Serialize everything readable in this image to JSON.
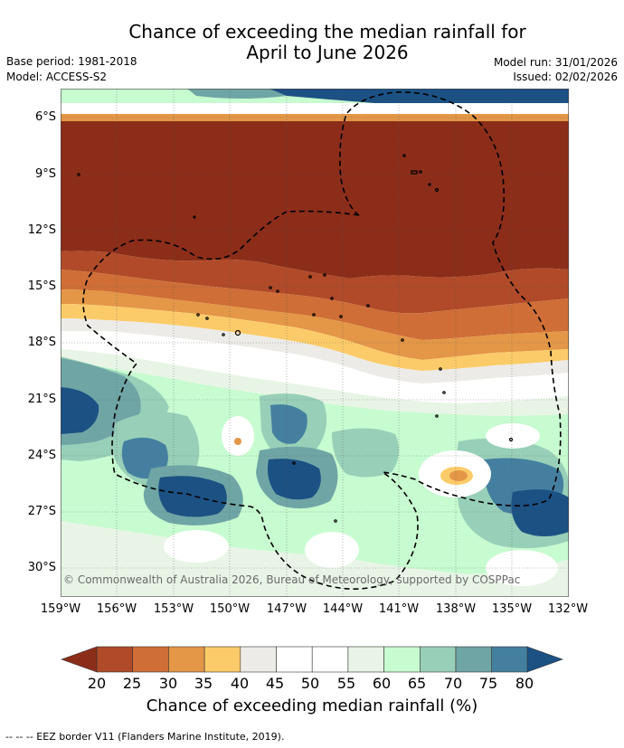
{
  "header": {
    "title_line1": "Chance of exceeding the median rainfall for",
    "title_line2": "April to June 2026",
    "base_period": "Base period: 1981-2018",
    "model": "Model: ACCESS-S2",
    "model_run": "Model run: 31/01/2026",
    "issued": "Issued: 02/02/2026"
  },
  "map": {
    "credit": "© Commonwealth of Australia 2026, Bureau of Meteorology, supported by COSPPac",
    "lat_ticks": [
      "6°S",
      "9°S",
      "12°S",
      "15°S",
      "18°S",
      "21°S",
      "24°S",
      "27°S",
      "30°S"
    ],
    "lon_ticks": [
      "159°W",
      "156°W",
      "153°W",
      "150°W",
      "147°W",
      "144°W",
      "141°W",
      "138°W",
      "135°W",
      "132°W"
    ]
  },
  "colorbar": {
    "labels": [
      "20",
      "25",
      "30",
      "35",
      "40",
      "45",
      "50",
      "55",
      "60",
      "65",
      "70",
      "75",
      "80"
    ],
    "colors": [
      "#8c2d1a",
      "#b04a28",
      "#cf6e36",
      "#e39747",
      "#fccb69",
      "#ecebe8",
      "#ffffff",
      "#ffffff",
      "#e8f5e6",
      "#c7fbd0",
      "#98cfb8",
      "#6fa5a5",
      "#457fa0",
      "#1c5184"
    ],
    "title": "Chance of exceeding median rainfall (%)"
  },
  "footer": {
    "legend": "--  --  -- EEZ border V11 (Flanders Marine Institute, 2019)."
  }
}
